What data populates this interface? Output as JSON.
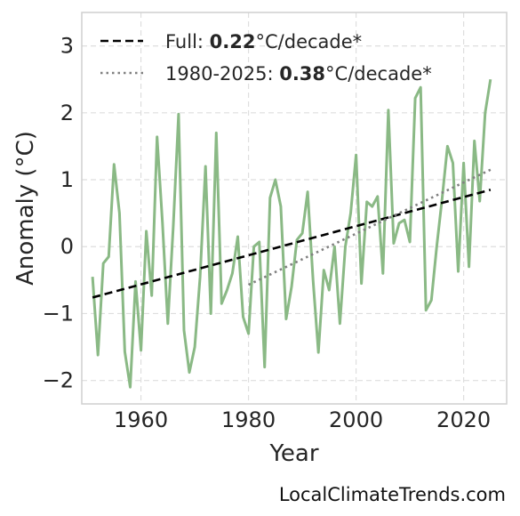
{
  "chart_data": {
    "type": "line",
    "title": "",
    "xlabel": "Year",
    "ylabel": "Anomaly (°C)",
    "xlim": [
      1949,
      2028
    ],
    "ylim": [
      -2.35,
      3.5
    ],
    "xticks": [
      1960,
      1980,
      2000,
      2020
    ],
    "xtick_labels": [
      "1960",
      "1980",
      "2000",
      "2020"
    ],
    "yticks": [
      -2,
      -1,
      0,
      1,
      2,
      3
    ],
    "ytick_labels": [
      "−2",
      "−1",
      "0",
      "1",
      "2",
      "3"
    ],
    "grid": true,
    "legend_position": "top-left",
    "series": [
      {
        "color": "#8ab985",
        "x": [
          1951,
          1952,
          1953,
          1954,
          1955,
          1956,
          1957,
          1958,
          1959,
          1960,
          1961,
          1962,
          1963,
          1964,
          1965,
          1966,
          1967,
          1968,
          1969,
          1970,
          1971,
          1972,
          1973,
          1974,
          1975,
          1976,
          1977,
          1978,
          1979,
          1980,
          1981,
          1982,
          1983,
          1984,
          1985,
          1986,
          1987,
          1988,
          1989,
          1990,
          1991,
          1992,
          1993,
          1994,
          1995,
          1996,
          1997,
          1998,
          1999,
          2000,
          2001,
          2002,
          2003,
          2004,
          2005,
          2006,
          2007,
          2008,
          2009,
          2010,
          2011,
          2012,
          2013,
          2014,
          2015,
          2016,
          2017,
          2018,
          2019,
          2020,
          2021,
          2022,
          2023,
          2024,
          2025
        ],
        "y": [
          -0.45,
          -1.62,
          -0.25,
          -0.15,
          1.23,
          0.5,
          -1.57,
          -2.1,
          -0.52,
          -1.55,
          0.23,
          -0.73,
          1.64,
          0.35,
          -1.15,
          0.3,
          1.98,
          -1.25,
          -1.88,
          -1.5,
          -0.45,
          1.2,
          -1.0,
          1.7,
          -0.85,
          -0.65,
          -0.4,
          0.15,
          -1.05,
          -1.3,
          0.0,
          0.07,
          -1.8,
          0.73,
          1.0,
          0.6,
          -1.08,
          -0.6,
          0.1,
          0.2,
          0.82,
          -0.5,
          -1.58,
          -0.35,
          -0.65,
          0.0,
          -1.15,
          0.0,
          0.5,
          1.37,
          -0.55,
          0.67,
          0.6,
          0.75,
          -0.4,
          2.04,
          0.05,
          0.35,
          0.4,
          0.07,
          2.22,
          2.38,
          -0.95,
          -0.8,
          0.0,
          0.72,
          1.5,
          1.25,
          -0.37,
          1.25,
          -0.3,
          1.58,
          0.68,
          2.0,
          2.5
        ]
      }
    ],
    "trends": [
      {
        "name_prefix": "Full: ",
        "rate": "0.22",
        "name_suffix": "°C/decade*",
        "style": "dashed",
        "color": "#000000",
        "x": [
          1951,
          2025
        ],
        "y": [
          -0.76,
          0.85
        ]
      },
      {
        "name_prefix": "1980-2025: ",
        "rate": "0.38",
        "name_suffix": "°C/decade*",
        "style": "dotted",
        "color": "#808080",
        "x": [
          1980,
          2025
        ],
        "y": [
          -0.57,
          1.15
        ]
      }
    ]
  },
  "watermark": "LocalClimateTrends.com"
}
